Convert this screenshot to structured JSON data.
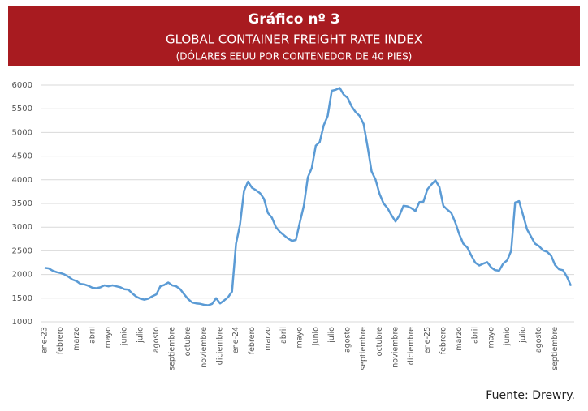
{
  "chart_data": {
    "type": "line",
    "title": "Gráfico nº 3",
    "subtitle": "GLOBAL CONTAINER FREIGHT RATE INDEX",
    "y_label": "(DÓLARES EEUU POR CONTENEDOR DE 40 PIES)",
    "source": "Fuente: Drewry.",
    "categories": [
      "ene-23",
      null,
      null,
      null,
      "febrero",
      null,
      null,
      null,
      "marzo",
      null,
      null,
      null,
      "abril",
      null,
      null,
      null,
      "mayo",
      null,
      null,
      null,
      "junio",
      null,
      null,
      null,
      "julio",
      null,
      null,
      null,
      "agosto",
      null,
      null,
      null,
      "septiembre",
      null,
      null,
      null,
      "octubre",
      null,
      null,
      null,
      "noviembre",
      null,
      null,
      null,
      "diciembre",
      null,
      null,
      null,
      "ene-24",
      null,
      null,
      null,
      "febrero",
      null,
      null,
      null,
      "marzo",
      null,
      null,
      null,
      "abril",
      null,
      null,
      null,
      "mayo",
      null,
      null,
      null,
      "junio",
      null,
      null,
      null,
      "julio",
      null,
      null,
      null,
      "agosto",
      null,
      null,
      null,
      "septiembre",
      null,
      null,
      null,
      "octubre",
      null,
      null,
      null,
      "noviembre",
      null,
      null,
      null,
      "diciembre",
      null,
      null,
      null,
      "ene-25",
      null,
      null,
      null,
      "febrero",
      null,
      null,
      null,
      "marzo",
      null,
      null,
      null,
      "abril",
      null,
      null,
      null,
      "mayo",
      null,
      null,
      null,
      "junio",
      null,
      null,
      null,
      "julio",
      null,
      null,
      null,
      "agosto",
      null,
      null,
      null,
      "septiembre",
      null,
      null,
      null,
      null
    ],
    "series": [
      {
        "name": "Global Container Freight Rate Index",
        "color": "#5b9bd5",
        "values": [
          2140,
          2130,
          2080,
          2050,
          2030,
          2000,
          1950,
          1890,
          1860,
          1800,
          1790,
          1760,
          1720,
          1710,
          1730,
          1770,
          1750,
          1770,
          1750,
          1730,
          1690,
          1680,
          1600,
          1530,
          1490,
          1470,
          1490,
          1540,
          1580,
          1750,
          1780,
          1830,
          1770,
          1750,
          1690,
          1580,
          1480,
          1410,
          1390,
          1380,
          1360,
          1350,
          1380,
          1500,
          1390,
          1450,
          1520,
          1640,
          2650,
          3050,
          3770,
          3960,
          3830,
          3780,
          3720,
          3600,
          3300,
          3200,
          3000,
          2900,
          2830,
          2760,
          2710,
          2730,
          3100,
          3450,
          4050,
          4250,
          4720,
          4800,
          5150,
          5350,
          5880,
          5900,
          5940,
          5800,
          5730,
          5550,
          5430,
          5350,
          5180,
          4700,
          4180,
          4000,
          3700,
          3500,
          3400,
          3250,
          3120,
          3250,
          3450,
          3440,
          3400,
          3340,
          3530,
          3540,
          3800,
          3900,
          3990,
          3850,
          3450,
          3370,
          3300,
          3100,
          2850,
          2650,
          2570,
          2400,
          2250,
          2190,
          2230,
          2260,
          2150,
          2090,
          2080,
          2230,
          2300,
          2500,
          3520,
          3550,
          3250,
          2950,
          2800,
          2650,
          2600,
          2510,
          2480,
          2400,
          2200,
          2110,
          2090,
          1950,
          1760
        ]
      }
    ],
    "ylim": [
      1000,
      6000
    ],
    "yticks": [
      1000,
      1500,
      2000,
      2500,
      3000,
      3500,
      4000,
      4500,
      5000,
      5500,
      6000
    ],
    "grid": true,
    "header_color": "#a81b20"
  }
}
